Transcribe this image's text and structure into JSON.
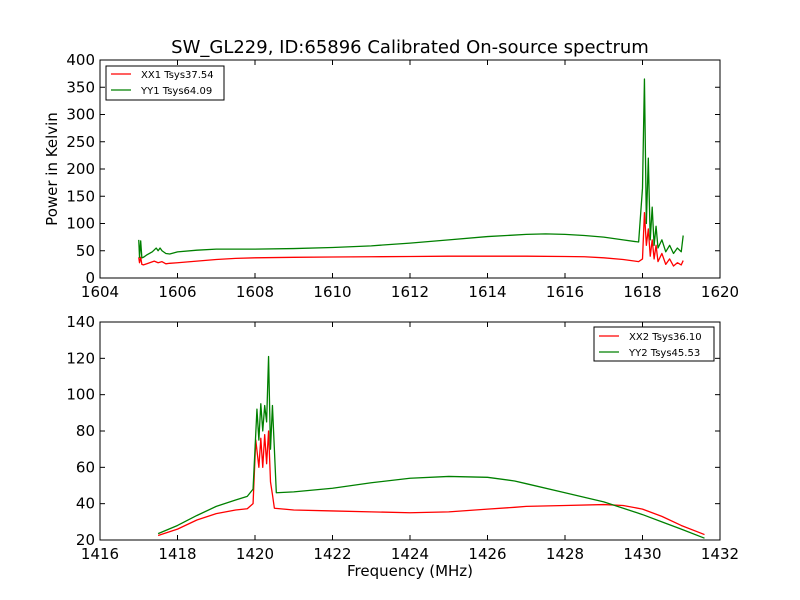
{
  "chart_data": [
    {
      "type": "line",
      "title": "SW_GL229, ID:65896 Calibrated On-source spectrum",
      "xlabel": "",
      "ylabel": "Power in Kelvin",
      "xlim": [
        1604,
        1620
      ],
      "ylim": [
        0,
        400
      ],
      "xticks": [
        1604,
        1606,
        1608,
        1610,
        1612,
        1614,
        1616,
        1618,
        1620
      ],
      "yticks": [
        0,
        50,
        100,
        150,
        200,
        250,
        300,
        350,
        400
      ],
      "legend_position": "top-left",
      "series": [
        {
          "name": "XX1 Tsys37.54",
          "color": "#ff0000",
          "x": [
            1605.0,
            1605.02,
            1605.05,
            1605.08,
            1605.12,
            1605.2,
            1605.4,
            1605.5,
            1605.6,
            1605.7,
            1605.8,
            1606.0,
            1606.5,
            1607.0,
            1607.5,
            1608.0,
            1609.0,
            1610.0,
            1611.0,
            1612.0,
            1613.0,
            1614.0,
            1615.0,
            1616.0,
            1616.5,
            1617.0,
            1617.5,
            1617.9,
            1618.0,
            1618.05,
            1618.1,
            1618.15,
            1618.2,
            1618.25,
            1618.3,
            1618.35,
            1618.4,
            1618.5,
            1618.6,
            1618.7,
            1618.8,
            1618.9,
            1619.0,
            1619.05
          ],
          "y": [
            38,
            28,
            38,
            25,
            24,
            26,
            31,
            28,
            30,
            26,
            27,
            28,
            31,
            34,
            36,
            37,
            38,
            38.5,
            39,
            39.5,
            40,
            40,
            40,
            39.5,
            39,
            37,
            34,
            30,
            35,
            120,
            60,
            90,
            40,
            70,
            35,
            60,
            30,
            45,
            25,
            35,
            22,
            28,
            24,
            32
          ]
        },
        {
          "name": "YY1 Tsys64.09",
          "color": "#008000",
          "x": [
            1605.0,
            1605.02,
            1605.05,
            1605.08,
            1605.12,
            1605.2,
            1605.35,
            1605.45,
            1605.5,
            1605.55,
            1605.6,
            1605.7,
            1605.8,
            1606.0,
            1606.5,
            1607.0,
            1607.5,
            1608.0,
            1609.0,
            1610.0,
            1611.0,
            1612.0,
            1613.0,
            1614.0,
            1615.0,
            1615.5,
            1616.0,
            1616.5,
            1617.0,
            1617.5,
            1617.9,
            1618.0,
            1618.05,
            1618.1,
            1618.15,
            1618.2,
            1618.25,
            1618.3,
            1618.35,
            1618.4,
            1618.5,
            1618.6,
            1618.7,
            1618.8,
            1618.9,
            1619.0,
            1619.05
          ],
          "y": [
            70,
            38,
            68,
            37,
            38,
            42,
            48,
            55,
            50,
            55,
            50,
            45,
            44,
            48,
            51,
            53,
            53,
            53,
            54,
            56,
            59,
            64,
            70,
            76,
            80,
            81,
            80,
            78,
            75,
            70,
            66,
            165,
            365,
            100,
            220,
            70,
            130,
            60,
            95,
            55,
            70,
            48,
            60,
            45,
            55,
            48,
            78
          ]
        }
      ]
    },
    {
      "type": "line",
      "title": "",
      "xlabel": "Frequency (MHz)",
      "ylabel": "",
      "xlim": [
        1416,
        1432
      ],
      "ylim": [
        20,
        140
      ],
      "xticks": [
        1416,
        1418,
        1420,
        1422,
        1424,
        1426,
        1428,
        1430,
        1432
      ],
      "yticks": [
        20,
        40,
        60,
        80,
        100,
        120,
        140
      ],
      "legend_position": "top-right",
      "series": [
        {
          "name": "XX2 Tsys36.10",
          "color": "#ff0000",
          "x": [
            1417.5,
            1418.0,
            1418.5,
            1419.0,
            1419.5,
            1419.8,
            1419.95,
            1420.02,
            1420.1,
            1420.15,
            1420.2,
            1420.25,
            1420.3,
            1420.35,
            1420.4,
            1420.45,
            1420.5,
            1421.0,
            1422.0,
            1423.0,
            1424.0,
            1425.0,
            1426.0,
            1426.7,
            1427.0,
            1428.0,
            1429.0,
            1429.5,
            1430.0,
            1430.5,
            1431.0,
            1431.6
          ],
          "y": [
            22.5,
            26,
            31,
            34.5,
            36.5,
            37.2,
            40,
            75,
            60,
            76,
            60,
            78,
            62,
            80,
            52,
            45,
            37.5,
            36.5,
            36,
            35.5,
            35,
            35.5,
            37,
            38,
            38.5,
            39,
            39.5,
            39,
            37,
            33,
            28,
            23
          ]
        },
        {
          "name": "YY2 Tsys45.53",
          "color": "#008000",
          "x": [
            1417.5,
            1418.0,
            1418.5,
            1419.0,
            1419.5,
            1419.8,
            1419.95,
            1420.05,
            1420.1,
            1420.15,
            1420.2,
            1420.25,
            1420.3,
            1420.35,
            1420.4,
            1420.45,
            1420.55,
            1421.0,
            1422.0,
            1423.0,
            1424.0,
            1425.0,
            1426.0,
            1426.7,
            1427.0,
            1428.0,
            1429.0,
            1430.0,
            1430.5,
            1431.0,
            1431.6
          ],
          "y": [
            23.5,
            28,
            33.5,
            38.5,
            42,
            44,
            48,
            92,
            75,
            95,
            80,
            94,
            85,
            121,
            70,
            94,
            46,
            46.5,
            48.5,
            51.5,
            54,
            55,
            54.5,
            52.5,
            51,
            46,
            41,
            34,
            30,
            26,
            21
          ]
        }
      ]
    }
  ]
}
